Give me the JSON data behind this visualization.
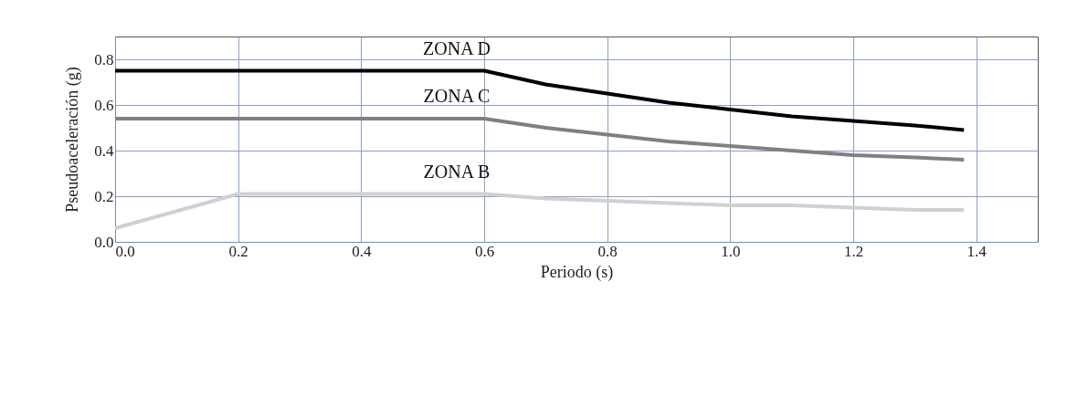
{
  "chart_data": {
    "type": "line",
    "xlabel": "Periodo  (s)",
    "ylabel": "Pseudoaceleración  (g)",
    "xlim": [
      0,
      1.5
    ],
    "xticks": [
      {
        "value": 0,
        "label": "0.0"
      },
      0.2,
      0.4,
      0.6,
      0.8,
      {
        "value": 1,
        "label": "1.0"
      },
      1.2,
      1.4
    ],
    "ylim": [
      0,
      0.9
    ],
    "yticks": [
      {
        "value": 0,
        "label": "0.0"
      },
      0.2,
      0.4,
      0.6,
      0.8
    ],
    "grid": true,
    "legend": false,
    "marker": "none",
    "line_style": "solid",
    "series": [
      {
        "name": "ZONA D",
        "color": "#000000",
        "x": [
          0,
          0.2,
          0.4,
          0.6,
          0.7,
          0.8,
          0.9,
          1.0,
          1.1,
          1.2,
          1.3,
          1.38
        ],
        "values": [
          0.75,
          0.75,
          0.75,
          0.75,
          0.69,
          0.65,
          0.61,
          0.58,
          0.55,
          0.53,
          0.51,
          0.49
        ]
      },
      {
        "name": "ZONA C",
        "color": "#808080",
        "x": [
          0,
          0.2,
          0.4,
          0.6,
          0.7,
          0.8,
          0.9,
          1.0,
          1.1,
          1.2,
          1.3,
          1.38
        ],
        "values": [
          0.54,
          0.54,
          0.54,
          0.54,
          0.5,
          0.47,
          0.44,
          0.42,
          0.4,
          0.38,
          0.37,
          0.36
        ]
      },
      {
        "name": "ZONA B",
        "color": "#d0d0d0",
        "x": [
          0,
          0.2,
          0.4,
          0.6,
          0.7,
          0.8,
          0.9,
          1.0,
          1.1,
          1.2,
          1.3,
          1.38
        ],
        "values": [
          0.06,
          0.21,
          0.21,
          0.21,
          0.19,
          0.18,
          0.17,
          0.16,
          0.16,
          0.15,
          0.14,
          0.14
        ]
      }
    ]
  }
}
